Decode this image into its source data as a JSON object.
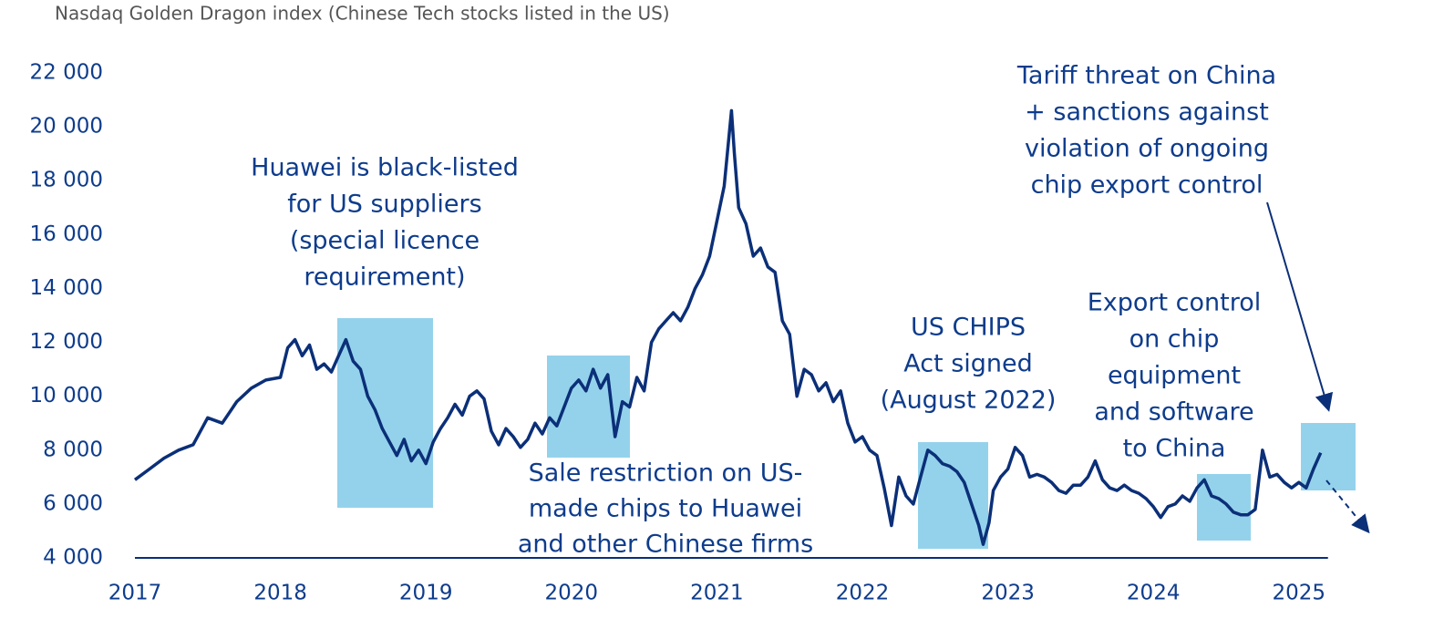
{
  "chart_data": {
    "type": "line",
    "title": "Nasdaq Golden Dragon index (Chinese Tech stocks listed in the US)",
    "x": [
      2017.0,
      2017.1,
      2017.2,
      2017.3,
      2017.4,
      2017.5,
      2017.6,
      2017.7,
      2017.8,
      2017.9,
      2018.0,
      2018.05,
      2018.1,
      2018.15,
      2018.2,
      2018.25,
      2018.3,
      2018.35,
      2018.4,
      2018.45,
      2018.5,
      2018.55,
      2018.6,
      2018.65,
      2018.7,
      2018.75,
      2018.8,
      2018.85,
      2018.9,
      2018.95,
      2019.0,
      2019.05,
      2019.1,
      2019.15,
      2019.2,
      2019.25,
      2019.3,
      2019.35,
      2019.4,
      2019.45,
      2019.5,
      2019.55,
      2019.6,
      2019.65,
      2019.7,
      2019.75,
      2019.8,
      2019.85,
      2019.9,
      2019.95,
      2020.0,
      2020.05,
      2020.1,
      2020.15,
      2020.2,
      2020.25,
      2020.3,
      2020.35,
      2020.4,
      2020.45,
      2020.5,
      2020.55,
      2020.6,
      2020.65,
      2020.7,
      2020.75,
      2020.8,
      2020.85,
      2020.9,
      2020.95,
      2021.0,
      2021.05,
      2021.1,
      2021.12,
      2021.15,
      2021.2,
      2021.25,
      2021.3,
      2021.35,
      2021.4,
      2021.45,
      2021.5,
      2021.55,
      2021.6,
      2021.65,
      2021.7,
      2021.75,
      2021.8,
      2021.85,
      2021.9,
      2021.95,
      2022.0,
      2022.05,
      2022.1,
      2022.15,
      2022.2,
      2022.25,
      2022.3,
      2022.35,
      2022.4,
      2022.45,
      2022.5,
      2022.55,
      2022.6,
      2022.65,
      2022.7,
      2022.75,
      2022.8,
      2022.83,
      2022.87,
      2022.9,
      2022.95,
      2023.0,
      2023.05,
      2023.1,
      2023.15,
      2023.2,
      2023.25,
      2023.3,
      2023.35,
      2023.4,
      2023.45,
      2023.5,
      2023.55,
      2023.6,
      2023.65,
      2023.7,
      2023.75,
      2023.8,
      2023.85,
      2023.9,
      2023.95,
      2024.0,
      2024.05,
      2024.1,
      2024.15,
      2024.2,
      2024.25,
      2024.3,
      2024.35,
      2024.4,
      2024.45,
      2024.5,
      2024.55,
      2024.6,
      2024.65,
      2024.7,
      2024.75,
      2024.8,
      2024.85,
      2024.9,
      2024.95,
      2025.0,
      2025.05,
      2025.1,
      2025.15
    ],
    "values": [
      6900,
      7300,
      7700,
      8000,
      8200,
      9200,
      9000,
      9800,
      10300,
      10600,
      10700,
      11800,
      12100,
      11500,
      11900,
      11000,
      11200,
      10900,
      11500,
      12100,
      11300,
      11000,
      10000,
      9500,
      8800,
      8300,
      7800,
      8400,
      7600,
      8000,
      7500,
      8300,
      8800,
      9200,
      9700,
      9300,
      10000,
      10200,
      9900,
      8700,
      8200,
      8800,
      8500,
      8100,
      8400,
      9000,
      8600,
      9200,
      8900,
      9600,
      10300,
      10600,
      10200,
      11000,
      10300,
      10800,
      8500,
      9800,
      9600,
      10700,
      10200,
      12000,
      12500,
      12800,
      13100,
      12800,
      13300,
      14000,
      14500,
      15200,
      16500,
      17800,
      20600,
      19000,
      17000,
      16400,
      15200,
      15500,
      14800,
      14600,
      12800,
      12300,
      10000,
      11000,
      10800,
      10200,
      10500,
      9800,
      10200,
      9000,
      8300,
      8500,
      8000,
      7800,
      6600,
      5200,
      7000,
      6300,
      6000,
      7000,
      8000,
      7800,
      7500,
      7400,
      7200,
      6800,
      6000,
      5200,
      4500,
      5300,
      6500,
      7000,
      7300,
      8100,
      7800,
      7000,
      7100,
      7000,
      6800,
      6500,
      6400,
      6700,
      6700,
      7000,
      7600,
      6900,
      6600,
      6500,
      6700,
      6500,
      6400,
      6200,
      5900,
      5500,
      5900,
      6000,
      6300,
      6100,
      6600,
      6900,
      6300,
      6200,
      6000,
      5700,
      5600,
      5600,
      5800,
      8000,
      7000,
      7100,
      6800,
      6600,
      6800,
      6600,
      7300,
      7900
    ],
    "color": "#0b2f78",
    "xlim": [
      2017,
      2025.2
    ],
    "xticks": [
      2017,
      2018,
      2019,
      2020,
      2021,
      2022,
      2023,
      2024,
      2025
    ],
    "ylim": [
      4000,
      22000
    ],
    "yticks": [
      {
        "value": 4000,
        "label": "4 000"
      },
      {
        "value": 6000,
        "label": "6 000"
      },
      {
        "value": 8000,
        "label": "8 000"
      },
      {
        "value": 10000,
        "label": "10 000"
      },
      {
        "value": 12000,
        "label": "12 000"
      },
      {
        "value": 14000,
        "label": "14 000"
      },
      {
        "value": 16000,
        "label": "16 000"
      },
      {
        "value": 18000,
        "label": "18 000"
      },
      {
        "value": 20000,
        "label": "20 000"
      },
      {
        "value": 22000,
        "label": "22 000"
      }
    ],
    "annotations": [
      [
        "Huawei is black-listed",
        "for US suppliers",
        "(special licence",
        "requirement)"
      ],
      [
        "Sale restriction on US-",
        "made chips to Huawei",
        "and other Chinese firms"
      ],
      [
        "US CHIPS",
        "Act signed",
        "(August 2022)"
      ],
      [
        "Export control",
        "on chip",
        "equipment",
        "and software",
        "to China"
      ],
      [
        "Tariff threat on China",
        "+ sanctions against",
        "violation of ongoing",
        "chip export control"
      ]
    ]
  }
}
